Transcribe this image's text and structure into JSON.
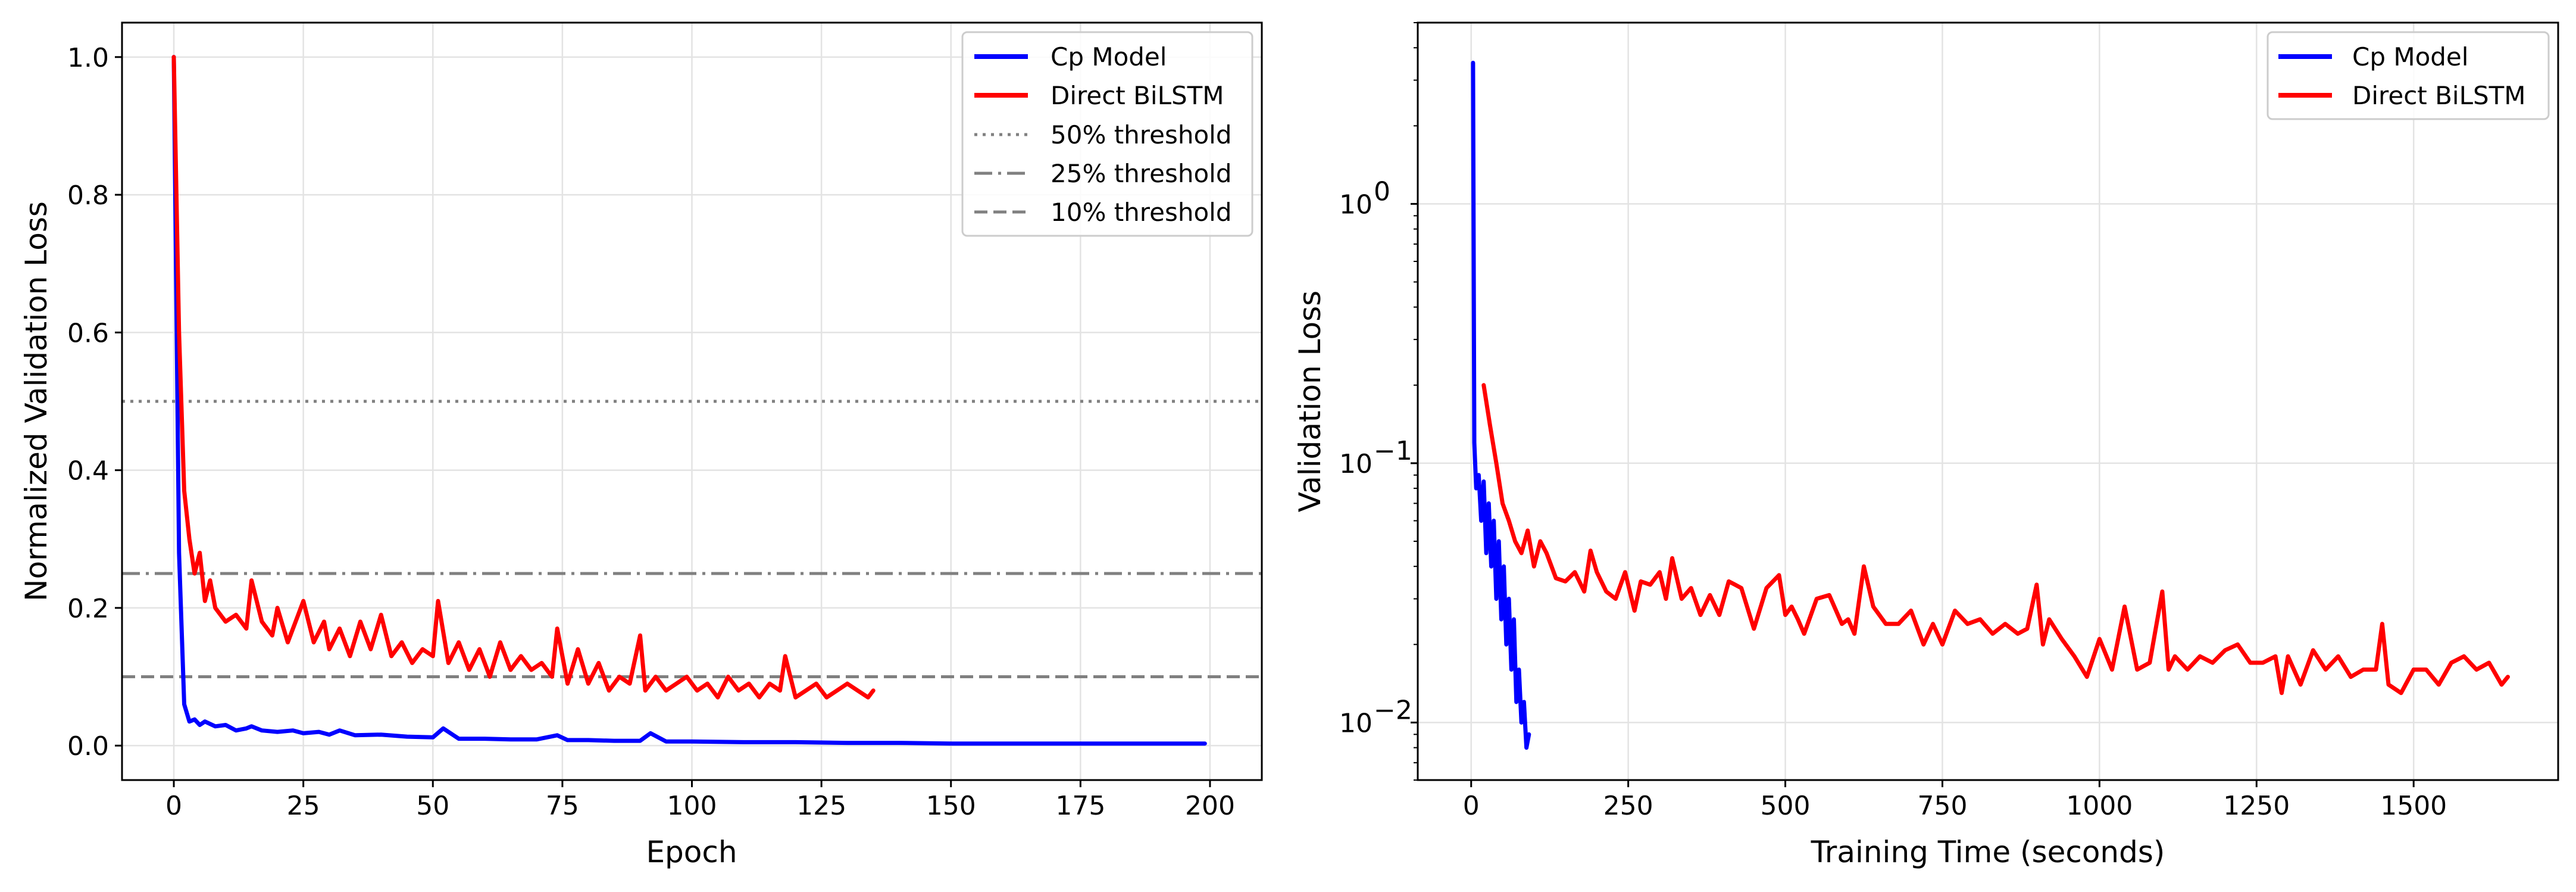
{
  "chart_data": [
    {
      "type": "line",
      "xlabel": "Epoch",
      "ylabel": "Normalized Validation Loss",
      "xlim": [
        -10,
        210
      ],
      "ylim": [
        -0.05,
        1.05
      ],
      "xticks": [
        0,
        25,
        50,
        75,
        100,
        125,
        150,
        175,
        200
      ],
      "yticks": [
        0.0,
        0.2,
        0.4,
        0.6,
        0.8,
        1.0
      ],
      "xtick_labels": [
        "0",
        "25",
        "50",
        "75",
        "100",
        "125",
        "150",
        "175",
        "200"
      ],
      "ytick_labels": [
        "0.0",
        "0.2",
        "0.4",
        "0.6",
        "0.8",
        "1.0"
      ],
      "grid": true,
      "legend_position": "top-right",
      "series": [
        {
          "name": "Cp Model",
          "color": "#0000ff",
          "x": [
            0,
            1,
            2,
            3,
            4,
            5,
            6,
            8,
            10,
            12,
            14,
            15,
            17,
            20,
            23,
            25,
            28,
            30,
            32,
            35,
            40,
            45,
            50,
            52,
            55,
            60,
            65,
            70,
            74,
            76,
            80,
            85,
            90,
            92,
            95,
            100,
            110,
            120,
            130,
            140,
            150,
            160,
            170,
            180,
            190,
            199
          ],
          "values": [
            1.0,
            0.28,
            0.06,
            0.035,
            0.038,
            0.03,
            0.035,
            0.028,
            0.03,
            0.022,
            0.025,
            0.028,
            0.022,
            0.02,
            0.022,
            0.018,
            0.02,
            0.016,
            0.022,
            0.015,
            0.016,
            0.013,
            0.012,
            0.025,
            0.01,
            0.01,
            0.009,
            0.009,
            0.015,
            0.008,
            0.008,
            0.007,
            0.007,
            0.018,
            0.006,
            0.006,
            0.005,
            0.005,
            0.004,
            0.004,
            0.003,
            0.003,
            0.003,
            0.003,
            0.003,
            0.003
          ]
        },
        {
          "name": "Direct BiLSTM",
          "color": "#ff0000",
          "x": [
            0,
            1,
            2,
            3,
            4,
            5,
            6,
            7,
            8,
            10,
            12,
            14,
            15,
            17,
            19,
            20,
            22,
            24,
            25,
            27,
            29,
            30,
            32,
            34,
            36,
            38,
            40,
            42,
            44,
            46,
            48,
            50,
            51,
            53,
            55,
            57,
            59,
            61,
            63,
            65,
            67,
            69,
            71,
            73,
            74,
            76,
            78,
            80,
            82,
            84,
            86,
            88,
            90,
            91,
            93,
            95,
            97,
            99,
            101,
            103,
            105,
            107,
            109,
            111,
            113,
            115,
            117,
            118,
            120,
            122,
            124,
            126,
            128,
            130,
            132,
            134,
            135
          ],
          "values": [
            1.0,
            0.6,
            0.37,
            0.3,
            0.25,
            0.28,
            0.21,
            0.24,
            0.2,
            0.18,
            0.19,
            0.17,
            0.24,
            0.18,
            0.16,
            0.2,
            0.15,
            0.19,
            0.21,
            0.15,
            0.18,
            0.14,
            0.17,
            0.13,
            0.18,
            0.14,
            0.19,
            0.13,
            0.15,
            0.12,
            0.14,
            0.13,
            0.21,
            0.12,
            0.15,
            0.11,
            0.14,
            0.1,
            0.15,
            0.11,
            0.13,
            0.11,
            0.12,
            0.1,
            0.17,
            0.09,
            0.14,
            0.09,
            0.12,
            0.08,
            0.1,
            0.09,
            0.16,
            0.08,
            0.1,
            0.08,
            0.09,
            0.1,
            0.08,
            0.09,
            0.07,
            0.1,
            0.08,
            0.09,
            0.07,
            0.09,
            0.08,
            0.13,
            0.07,
            0.08,
            0.09,
            0.07,
            0.08,
            0.09,
            0.08,
            0.07,
            0.08
          ]
        }
      ],
      "reference_lines": [
        {
          "name": "50% threshold",
          "y": 0.5,
          "style": "dotted",
          "color": "#808080"
        },
        {
          "name": "25% threshold",
          "y": 0.25,
          "style": "dashdot",
          "color": "#808080"
        },
        {
          "name": "10% threshold",
          "y": 0.1,
          "style": "dashed",
          "color": "#808080"
        }
      ]
    },
    {
      "type": "line",
      "xlabel": "Training Time (seconds)",
      "ylabel": "Validation Loss",
      "yscale": "log",
      "xlim": [
        -85,
        1730
      ],
      "ylim": [
        0.006,
        5.0
      ],
      "xticks": [
        0,
        250,
        500,
        750,
        1000,
        1250,
        1500
      ],
      "yticks": [
        0.01,
        0.1,
        1.0
      ],
      "xtick_labels": [
        "0",
        "250",
        "500",
        "750",
        "1000",
        "1250",
        "1500"
      ],
      "ytick_labels": [
        "10",
        "10",
        "10"
      ],
      "ytick_exponents": [
        "−2",
        "−1",
        "0"
      ],
      "grid": true,
      "legend_position": "top-right",
      "series": [
        {
          "name": "Cp Model",
          "color": "#0000ff",
          "x": [
            3,
            5,
            8,
            12,
            16,
            20,
            24,
            28,
            32,
            36,
            40,
            44,
            48,
            52,
            56,
            60,
            64,
            68,
            72,
            76,
            80,
            84,
            88,
            92
          ],
          "values": [
            3.5,
            0.12,
            0.08,
            0.09,
            0.06,
            0.085,
            0.045,
            0.07,
            0.04,
            0.06,
            0.03,
            0.05,
            0.025,
            0.04,
            0.02,
            0.03,
            0.016,
            0.025,
            0.012,
            0.016,
            0.01,
            0.012,
            0.008,
            0.009
          ]
        },
        {
          "name": "Direct BiLSTM",
          "color": "#ff0000",
          "x": [
            20,
            30,
            40,
            50,
            60,
            70,
            80,
            90,
            100,
            110,
            120,
            135,
            150,
            165,
            180,
            190,
            200,
            215,
            230,
            245,
            260,
            270,
            285,
            300,
            310,
            320,
            335,
            350,
            365,
            380,
            395,
            410,
            420,
            430,
            450,
            470,
            490,
            500,
            510,
            520,
            530,
            550,
            570,
            590,
            600,
            610,
            625,
            640,
            660,
            680,
            700,
            720,
            735,
            750,
            770,
            790,
            810,
            830,
            850,
            870,
            885,
            900,
            910,
            920,
            940,
            960,
            980,
            1000,
            1020,
            1040,
            1060,
            1080,
            1100,
            1110,
            1120,
            1140,
            1160,
            1180,
            1200,
            1220,
            1240,
            1260,
            1280,
            1290,
            1300,
            1320,
            1340,
            1360,
            1380,
            1400,
            1420,
            1440,
            1450,
            1460,
            1480,
            1500,
            1520,
            1540,
            1560,
            1580,
            1600,
            1620,
            1640,
            1650
          ],
          "values": [
            0.2,
            0.14,
            0.1,
            0.07,
            0.06,
            0.05,
            0.045,
            0.055,
            0.04,
            0.05,
            0.045,
            0.036,
            0.035,
            0.038,
            0.032,
            0.046,
            0.038,
            0.032,
            0.03,
            0.038,
            0.027,
            0.035,
            0.034,
            0.038,
            0.03,
            0.043,
            0.03,
            0.033,
            0.026,
            0.031,
            0.026,
            0.035,
            0.034,
            0.033,
            0.023,
            0.033,
            0.037,
            0.026,
            0.028,
            0.025,
            0.022,
            0.03,
            0.031,
            0.024,
            0.025,
            0.022,
            0.04,
            0.028,
            0.024,
            0.024,
            0.027,
            0.02,
            0.024,
            0.02,
            0.027,
            0.024,
            0.025,
            0.022,
            0.024,
            0.022,
            0.023,
            0.034,
            0.02,
            0.025,
            0.021,
            0.018,
            0.015,
            0.021,
            0.016,
            0.028,
            0.016,
            0.017,
            0.032,
            0.016,
            0.018,
            0.016,
            0.018,
            0.017,
            0.019,
            0.02,
            0.017,
            0.017,
            0.018,
            0.013,
            0.018,
            0.014,
            0.019,
            0.016,
            0.018,
            0.015,
            0.016,
            0.016,
            0.024,
            0.014,
            0.013,
            0.016,
            0.016,
            0.014,
            0.017,
            0.018,
            0.016,
            0.017,
            0.014,
            0.015
          ]
        }
      ]
    }
  ]
}
